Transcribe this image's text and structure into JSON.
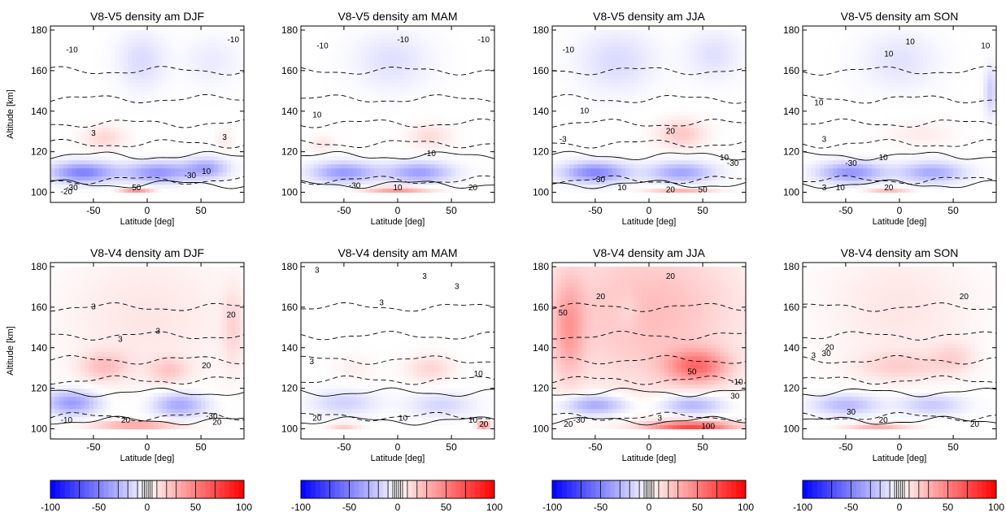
{
  "figure": {
    "colorscale": {
      "ticks": [
        -100,
        -50,
        0,
        50,
        100
      ],
      "min": -100,
      "max": 100,
      "negative_color": "#0000ff",
      "positive_color": "#ff0000"
    }
  },
  "chart_data": [
    {
      "type": "heatmap",
      "title": "V8-V5 density am    DJF",
      "comparison": "V8-V5",
      "season": "DJF",
      "xlabel": "Latitude [deg]",
      "ylabel": "Altitude [km]",
      "xlim": [
        -90,
        90
      ],
      "ylim": [
        95,
        182
      ],
      "xticks": [
        -50,
        0,
        50
      ],
      "yticks": [
        100,
        120,
        140,
        160,
        180
      ],
      "features": [
        {
          "lat": -5,
          "alt": 165,
          "v": -14,
          "w": 22,
          "h": 14
        },
        {
          "lat": 60,
          "alt": 165,
          "v": -8,
          "w": 25,
          "h": 12
        },
        {
          "lat": -40,
          "alt": 127,
          "v": 16,
          "w": 20,
          "h": 6
        },
        {
          "lat": 72,
          "alt": 126,
          "v": 8,
          "w": 8,
          "h": 6
        },
        {
          "lat": -60,
          "alt": 110,
          "v": -50,
          "w": 30,
          "h": 5
        },
        {
          "lat": 10,
          "alt": 110,
          "v": -42,
          "w": 30,
          "h": 5
        },
        {
          "lat": 55,
          "alt": 112,
          "v": -35,
          "w": 20,
          "h": 5
        },
        {
          "lat": -10,
          "alt": 100,
          "v": 55,
          "w": 15,
          "h": 2
        }
      ],
      "contour_labels": [
        {
          "lat": -70,
          "alt": 170,
          "text": "-10"
        },
        {
          "lat": 80,
          "alt": 175,
          "text": "-10"
        },
        {
          "lat": -50,
          "alt": 129,
          "text": "3"
        },
        {
          "lat": 72,
          "alt": 127,
          "text": "3"
        },
        {
          "lat": 40,
          "alt": 108,
          "text": "-30"
        },
        {
          "lat": 55,
          "alt": 110,
          "text": "10"
        },
        {
          "lat": -70,
          "alt": 102,
          "text": "-30"
        },
        {
          "lat": -75,
          "alt": 100,
          "text": "-20"
        },
        {
          "lat": -10,
          "alt": 102,
          "text": "50"
        }
      ]
    },
    {
      "type": "heatmap",
      "title": "V8-V5 density am    MAM",
      "comparison": "V8-V5",
      "season": "MAM",
      "xlabel": "Latitude [deg]",
      "ylabel": "",
      "xlim": [
        -90,
        90
      ],
      "ylim": [
        95,
        182
      ],
      "xticks": [
        -50,
        0,
        50
      ],
      "yticks": [
        100,
        120,
        140,
        160,
        180
      ],
      "features": [
        {
          "lat": -5,
          "alt": 165,
          "v": -12,
          "w": 35,
          "h": 14
        },
        {
          "lat": 30,
          "alt": 128,
          "v": 14,
          "w": 20,
          "h": 6
        },
        {
          "lat": -70,
          "alt": 124,
          "v": 10,
          "w": 12,
          "h": 4
        },
        {
          "lat": -50,
          "alt": 110,
          "v": -40,
          "w": 30,
          "h": 5
        },
        {
          "lat": 20,
          "alt": 110,
          "v": -38,
          "w": 30,
          "h": 5
        },
        {
          "lat": 0,
          "alt": 101,
          "v": 40,
          "w": 30,
          "h": 2
        }
      ],
      "contour_labels": [
        {
          "lat": -70,
          "alt": 172,
          "text": "-10"
        },
        {
          "lat": 5,
          "alt": 175,
          "text": "-10"
        },
        {
          "lat": 80,
          "alt": 175,
          "text": "-10"
        },
        {
          "lat": -75,
          "alt": 138,
          "text": "10"
        },
        {
          "lat": 30,
          "alt": 119,
          "text": "-10"
        },
        {
          "lat": -40,
          "alt": 103,
          "text": "-30"
        },
        {
          "lat": 0,
          "alt": 102,
          "text": "10"
        },
        {
          "lat": 70,
          "alt": 102,
          "text": "20"
        }
      ]
    },
    {
      "type": "heatmap",
      "title": "V8-V5 density am    JJA",
      "comparison": "V8-V5",
      "season": "JJA",
      "xlabel": "Latitude [deg]",
      "ylabel": "",
      "xlim": [
        -90,
        90
      ],
      "ylim": [
        95,
        182
      ],
      "xticks": [
        -50,
        0,
        50
      ],
      "yticks": [
        100,
        120,
        140,
        160,
        180
      ],
      "features": [
        {
          "lat": -30,
          "alt": 165,
          "v": -14,
          "w": 35,
          "h": 15
        },
        {
          "lat": 60,
          "alt": 168,
          "v": -12,
          "w": 25,
          "h": 12
        },
        {
          "lat": 30,
          "alt": 129,
          "v": 22,
          "w": 22,
          "h": 7
        },
        {
          "lat": -50,
          "alt": 110,
          "v": -48,
          "w": 30,
          "h": 5
        },
        {
          "lat": 30,
          "alt": 110,
          "v": -36,
          "w": 30,
          "h": 5
        },
        {
          "lat": 30,
          "alt": 100,
          "v": 40,
          "w": 30,
          "h": 2
        }
      ],
      "contour_labels": [
        {
          "lat": -75,
          "alt": 170,
          "text": "-10"
        },
        {
          "lat": -60,
          "alt": 140,
          "text": "10"
        },
        {
          "lat": -80,
          "alt": 126,
          "text": "-3"
        },
        {
          "lat": 20,
          "alt": 130,
          "text": "20"
        },
        {
          "lat": 70,
          "alt": 117,
          "text": "10"
        },
        {
          "lat": 78,
          "alt": 114,
          "text": "-30"
        },
        {
          "lat": -45,
          "alt": 106,
          "text": "30"
        },
        {
          "lat": -25,
          "alt": 102,
          "text": "10"
        },
        {
          "lat": 20,
          "alt": 101,
          "text": "20"
        },
        {
          "lat": 50,
          "alt": 101,
          "text": "50"
        }
      ]
    },
    {
      "type": "heatmap",
      "title": "V8-V5 density am    SON",
      "comparison": "V8-V5",
      "season": "SON",
      "xlabel": "Latitude [deg]",
      "ylabel": "",
      "xlim": [
        -90,
        90
      ],
      "ylim": [
        95,
        182
      ],
      "xticks": [
        -50,
        0,
        50
      ],
      "yticks": [
        100,
        120,
        140,
        160,
        180
      ],
      "features": [
        {
          "lat": 0,
          "alt": 165,
          "v": -11,
          "w": 35,
          "h": 14
        },
        {
          "lat": 85,
          "alt": 150,
          "v": -20,
          "w": 6,
          "h": 12
        },
        {
          "lat": 20,
          "alt": 129,
          "v": 8,
          "w": 30,
          "h": 6
        },
        {
          "lat": -45,
          "alt": 110,
          "v": -42,
          "w": 30,
          "h": 5
        },
        {
          "lat": 30,
          "alt": 110,
          "v": -34,
          "w": 30,
          "h": 5
        },
        {
          "lat": -10,
          "alt": 100,
          "v": 35,
          "w": 20,
          "h": 2
        }
      ],
      "contour_labels": [
        {
          "lat": -10,
          "alt": 168,
          "text": "10"
        },
        {
          "lat": 10,
          "alt": 174,
          "text": "10"
        },
        {
          "lat": 80,
          "alt": 172,
          "text": "10"
        },
        {
          "lat": -75,
          "alt": 144,
          "text": "10"
        },
        {
          "lat": -70,
          "alt": 126,
          "text": "3"
        },
        {
          "lat": -45,
          "alt": 114,
          "text": "-30"
        },
        {
          "lat": -15,
          "alt": 117,
          "text": "10"
        },
        {
          "lat": -70,
          "alt": 102,
          "text": "3"
        },
        {
          "lat": -55,
          "alt": 102,
          "text": "10"
        },
        {
          "lat": -10,
          "alt": 102,
          "text": "20"
        }
      ]
    },
    {
      "type": "heatmap",
      "title": "V8-V4 density am    DJF",
      "comparison": "V8-V4",
      "season": "DJF",
      "xlabel": "Latitude [deg]",
      "ylabel": "Altitude [km]",
      "xlim": [
        -90,
        90
      ],
      "ylim": [
        95,
        182
      ],
      "xticks": [
        -50,
        0,
        50
      ],
      "yticks": [
        100,
        120,
        140,
        160,
        180
      ],
      "features": [
        {
          "lat": 0,
          "alt": 155,
          "v": 10,
          "w": 80,
          "h": 35
        },
        {
          "lat": -40,
          "alt": 131,
          "v": 22,
          "w": 22,
          "h": 7
        },
        {
          "lat": 20,
          "alt": 129,
          "v": 18,
          "w": 18,
          "h": 6
        },
        {
          "lat": 80,
          "alt": 150,
          "v": 14,
          "w": 10,
          "h": 20
        },
        {
          "lat": -70,
          "alt": 113,
          "v": -40,
          "w": 25,
          "h": 6
        },
        {
          "lat": 30,
          "alt": 112,
          "v": -36,
          "w": 25,
          "h": 6
        },
        {
          "lat": -10,
          "alt": 102,
          "v": 40,
          "w": 40,
          "h": 2
        }
      ],
      "contour_labels": [
        {
          "lat": -50,
          "alt": 160,
          "text": "3"
        },
        {
          "lat": 10,
          "alt": 148,
          "text": "3"
        },
        {
          "lat": -25,
          "alt": 144,
          "text": "3"
        },
        {
          "lat": 55,
          "alt": 131,
          "text": "20"
        },
        {
          "lat": 78,
          "alt": 156,
          "text": "20"
        },
        {
          "lat": 60,
          "alt": 106,
          "text": "-30"
        },
        {
          "lat": -75,
          "alt": 104,
          "text": "-10"
        },
        {
          "lat": -20,
          "alt": 104,
          "text": "20"
        },
        {
          "lat": 65,
          "alt": 103,
          "text": "20"
        }
      ]
    },
    {
      "type": "heatmap",
      "title": "V8-V4 density am   MAM",
      "comparison": "V8-V4",
      "season": "MAM",
      "xlabel": "Latitude [deg]",
      "ylabel": "",
      "xlim": [
        -90,
        90
      ],
      "ylim": [
        95,
        182
      ],
      "xticks": [
        -50,
        0,
        50
      ],
      "yticks": [
        100,
        120,
        140,
        160,
        180
      ],
      "features": [
        {
          "lat": 30,
          "alt": 130,
          "v": 16,
          "w": 22,
          "h": 7
        },
        {
          "lat": -40,
          "alt": 130,
          "v": 6,
          "w": 20,
          "h": 7
        },
        {
          "lat": -50,
          "alt": 113,
          "v": -18,
          "w": 30,
          "h": 6
        },
        {
          "lat": 40,
          "alt": 112,
          "v": -16,
          "w": 30,
          "h": 6
        },
        {
          "lat": 80,
          "alt": 102,
          "v": 50,
          "w": 6,
          "h": 2
        },
        {
          "lat": -50,
          "alt": 101,
          "v": 20,
          "w": 15,
          "h": 2
        }
      ],
      "contour_labels": [
        {
          "lat": -75,
          "alt": 178,
          "text": "3"
        },
        {
          "lat": -15,
          "alt": 162,
          "text": "3"
        },
        {
          "lat": 25,
          "alt": 175,
          "text": "3"
        },
        {
          "lat": 55,
          "alt": 170,
          "text": "3"
        },
        {
          "lat": -80,
          "alt": 133,
          "text": "3"
        },
        {
          "lat": 75,
          "alt": 127,
          "text": "10"
        },
        {
          "lat": -75,
          "alt": 105,
          "text": "20"
        },
        {
          "lat": 5,
          "alt": 105,
          "text": "10"
        },
        {
          "lat": 70,
          "alt": 104,
          "text": "10"
        },
        {
          "lat": 80,
          "alt": 102,
          "text": "20"
        }
      ]
    },
    {
      "type": "heatmap",
      "title": "V8-V4 density am    JJA",
      "comparison": "V8-V4",
      "season": "JJA",
      "xlabel": "Latitude [deg]",
      "ylabel": "",
      "xlim": [
        -90,
        90
      ],
      "ylim": [
        95,
        182
      ],
      "xticks": [
        -50,
        0,
        50
      ],
      "yticks": [
        100,
        120,
        140,
        160,
        180
      ],
      "features": [
        {
          "lat": 0,
          "alt": 158,
          "v": 26,
          "w": 90,
          "h": 40
        },
        {
          "lat": -75,
          "alt": 150,
          "v": 30,
          "w": 15,
          "h": 25
        },
        {
          "lat": 45,
          "alt": 131,
          "v": 48,
          "w": 28,
          "h": 8
        },
        {
          "lat": -20,
          "alt": 158,
          "v": -8,
          "w": 12,
          "h": 10
        },
        {
          "lat": -50,
          "alt": 112,
          "v": -38,
          "w": 30,
          "h": 5
        },
        {
          "lat": 40,
          "alt": 112,
          "v": -34,
          "w": 30,
          "h": 5
        },
        {
          "lat": 40,
          "alt": 101,
          "v": 70,
          "w": 40,
          "h": 3
        }
      ],
      "contour_labels": [
        {
          "lat": -80,
          "alt": 157,
          "text": "50"
        },
        {
          "lat": -45,
          "alt": 165,
          "text": "20"
        },
        {
          "lat": 20,
          "alt": 175,
          "text": "20"
        },
        {
          "lat": 40,
          "alt": 128,
          "text": "50"
        },
        {
          "lat": 82,
          "alt": 123,
          "text": "-10"
        },
        {
          "lat": 80,
          "alt": 116,
          "text": "30"
        },
        {
          "lat": -65,
          "alt": 104,
          "text": "-30"
        },
        {
          "lat": -75,
          "alt": 102,
          "text": "20"
        },
        {
          "lat": 10,
          "alt": 105,
          "text": "3"
        },
        {
          "lat": 55,
          "alt": 101,
          "text": "100"
        }
      ]
    },
    {
      "type": "heatmap",
      "title": "V8-V4 density am    SON",
      "comparison": "V8-V4",
      "season": "SON",
      "xlabel": "Latitude [deg]",
      "ylabel": "",
      "xlim": [
        -90,
        90
      ],
      "ylim": [
        95,
        182
      ],
      "xticks": [
        -50,
        0,
        50
      ],
      "yticks": [
        100,
        120,
        140,
        160,
        180
      ],
      "features": [
        {
          "lat": 0,
          "alt": 160,
          "v": 10,
          "w": 70,
          "h": 30
        },
        {
          "lat": 0,
          "alt": 131,
          "v": 16,
          "w": 40,
          "h": 7
        },
        {
          "lat": 50,
          "alt": 135,
          "v": 14,
          "w": 20,
          "h": 8
        },
        {
          "lat": -50,
          "alt": 112,
          "v": -28,
          "w": 30,
          "h": 5
        },
        {
          "lat": 30,
          "alt": 112,
          "v": -22,
          "w": 30,
          "h": 5
        },
        {
          "lat": -20,
          "alt": 101,
          "v": 30,
          "w": 30,
          "h": 2
        }
      ],
      "contour_labels": [
        {
          "lat": 60,
          "alt": 165,
          "text": "20"
        },
        {
          "lat": -65,
          "alt": 140,
          "text": "20"
        },
        {
          "lat": -68,
          "alt": 137,
          "text": "30"
        },
        {
          "lat": -80,
          "alt": 136,
          "text": "3"
        },
        {
          "lat": -45,
          "alt": 108,
          "text": "30"
        },
        {
          "lat": -15,
          "alt": 104,
          "text": "20"
        },
        {
          "lat": 70,
          "alt": 102,
          "text": "20"
        }
      ]
    }
  ]
}
